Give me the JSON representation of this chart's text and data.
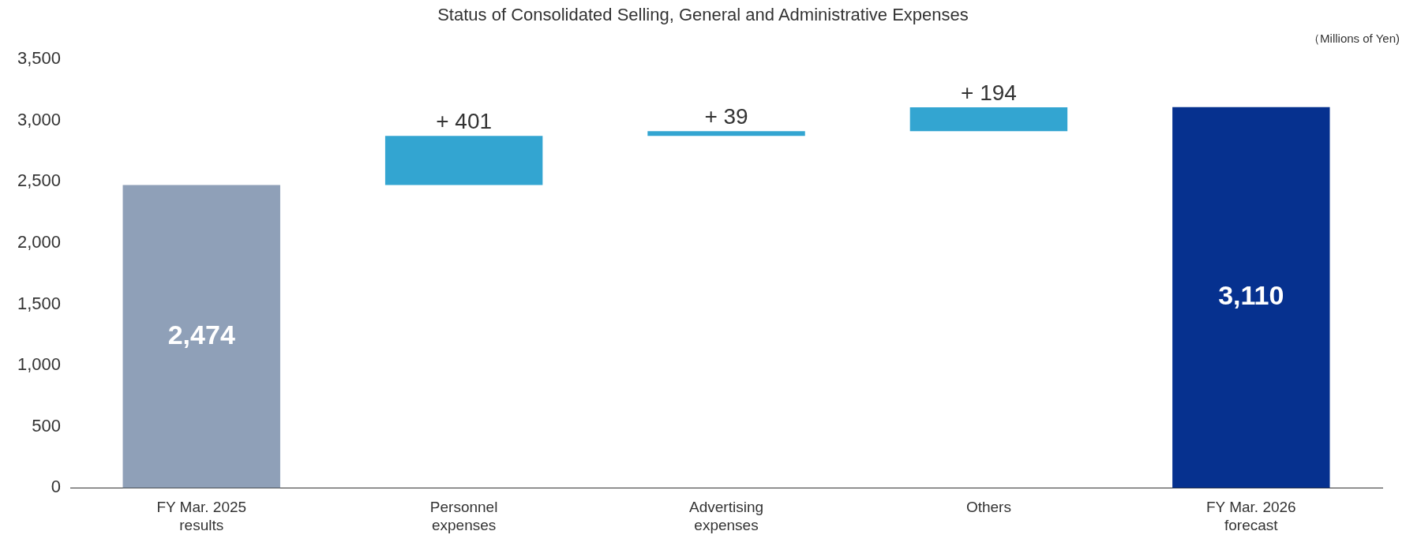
{
  "chart_data": {
    "type": "bar",
    "title": "Status of Consolidated Selling, General and Administrative Expenses",
    "annotations": [
      "（Millions of Yen)"
    ],
    "categories": [
      "FY Mar. 2025 results",
      "Personnel expenses",
      "Advertising expenses",
      "Others",
      "FY Mar. 2026 forecast"
    ],
    "values": [
      2474,
      401,
      39,
      194,
      3110
    ],
    "base": [
      0,
      2474,
      2875,
      2914,
      0
    ],
    "colors": [
      "#8fa0b8",
      "#33a5d1",
      "#33a5d1",
      "#33a5d1",
      "#06318f"
    ],
    "value_labels": [
      "2,474",
      "+ 401",
      "+ 39",
      "+ 194",
      "3,110"
    ],
    "ylim": [
      0,
      3500
    ],
    "yticks": [
      0,
      500,
      {
        "value": 1000,
        "label": "1,000"
      },
      {
        "value": 1500,
        "label": "1,500"
      },
      {
        "value": 2000,
        "label": "2,000"
      },
      {
        "value": 2500,
        "label": "2,500"
      },
      {
        "value": 3000,
        "label": "3,000"
      },
      {
        "value": 3500,
        "label": "3,500"
      }
    ],
    "grid": false,
    "legend": false
  }
}
